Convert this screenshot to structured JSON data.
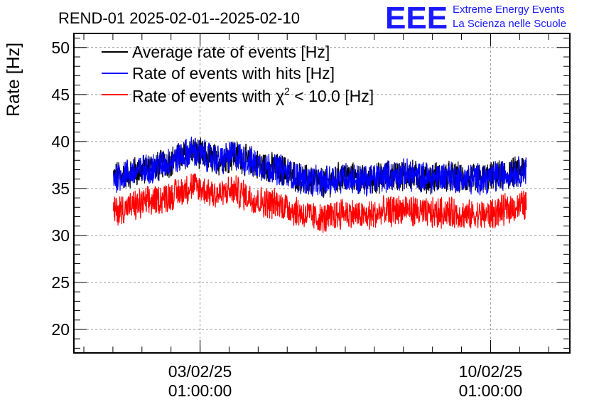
{
  "chart_data": {
    "type": "line",
    "title": "REND-01 2025-02-01--2025-02-10",
    "xlabel": "",
    "ylabel": "Rate [Hz]",
    "ylim": [
      17.5,
      51.5
    ],
    "y_ticks": [
      20,
      25,
      30,
      35,
      40,
      45,
      50
    ],
    "x_ticks": [
      {
        "line1": "03/02/25",
        "line2": "01:00:00",
        "day": 3.04
      },
      {
        "line1": "10/02/25",
        "line2": "01:00:00",
        "day": 10.04
      }
    ],
    "xlim": [
      0.0,
      11.95
    ],
    "grid": true,
    "legend_position": "top-left",
    "series": [
      {
        "name": "Average rate of events [Hz]",
        "color": "#000000",
        "days": [
          0.95,
          1.5,
          2.0,
          2.5,
          2.85,
          3.0,
          3.5,
          3.85,
          4.0,
          4.5,
          5.0,
          5.5,
          6.0,
          6.5,
          7.0,
          7.5,
          8.0,
          8.5,
          9.0,
          9.5,
          10.0,
          10.5,
          10.9
        ],
        "values": [
          36.2,
          36.8,
          37.3,
          38.2,
          39.0,
          38.7,
          38.0,
          38.6,
          38.3,
          37.4,
          37.0,
          36.0,
          35.6,
          36.3,
          35.8,
          36.3,
          36.5,
          36.1,
          36.3,
          36.0,
          36.1,
          36.6,
          37.0
        ]
      },
      {
        "name": "Rate of events with hits [Hz]",
        "color": "#0000ff",
        "days": [
          0.95,
          1.5,
          2.0,
          2.5,
          2.85,
          3.0,
          3.5,
          3.85,
          4.0,
          4.5,
          5.0,
          5.5,
          6.0,
          6.5,
          7.0,
          7.5,
          8.0,
          8.5,
          9.0,
          9.5,
          10.0,
          10.5,
          10.9
        ],
        "values": [
          36.2,
          36.8,
          37.3,
          38.2,
          39.0,
          38.7,
          38.0,
          38.6,
          38.3,
          37.4,
          37.0,
          36.0,
          35.6,
          36.3,
          35.8,
          36.3,
          36.5,
          36.1,
          36.3,
          36.0,
          36.1,
          36.6,
          37.0
        ],
        "band": 1.5
      },
      {
        "name": "Rate of events with χ² < 10.0 [Hz]",
        "legend_text": "Rate of events with χ",
        "legend_sup": "2",
        "legend_tail": " < 10.0 [Hz]",
        "color": "#ff0000",
        "days": [
          0.95,
          1.5,
          2.0,
          2.5,
          2.85,
          3.0,
          3.5,
          3.85,
          4.0,
          4.5,
          5.0,
          5.5,
          6.0,
          6.5,
          7.0,
          7.5,
          8.0,
          8.5,
          9.0,
          9.5,
          10.0,
          10.5,
          10.9
        ],
        "values": [
          32.6,
          33.2,
          33.8,
          34.5,
          35.3,
          35.0,
          34.3,
          34.9,
          34.5,
          33.6,
          33.3,
          32.3,
          31.7,
          32.5,
          32.0,
          32.5,
          32.8,
          32.3,
          32.5,
          32.1,
          32.2,
          32.9,
          33.3
        ],
        "band": 1.5
      }
    ]
  },
  "logo": {
    "mark": "EEE",
    "line1": "Extreme Energy Events",
    "line2": "La Scienza nelle Scuole"
  }
}
